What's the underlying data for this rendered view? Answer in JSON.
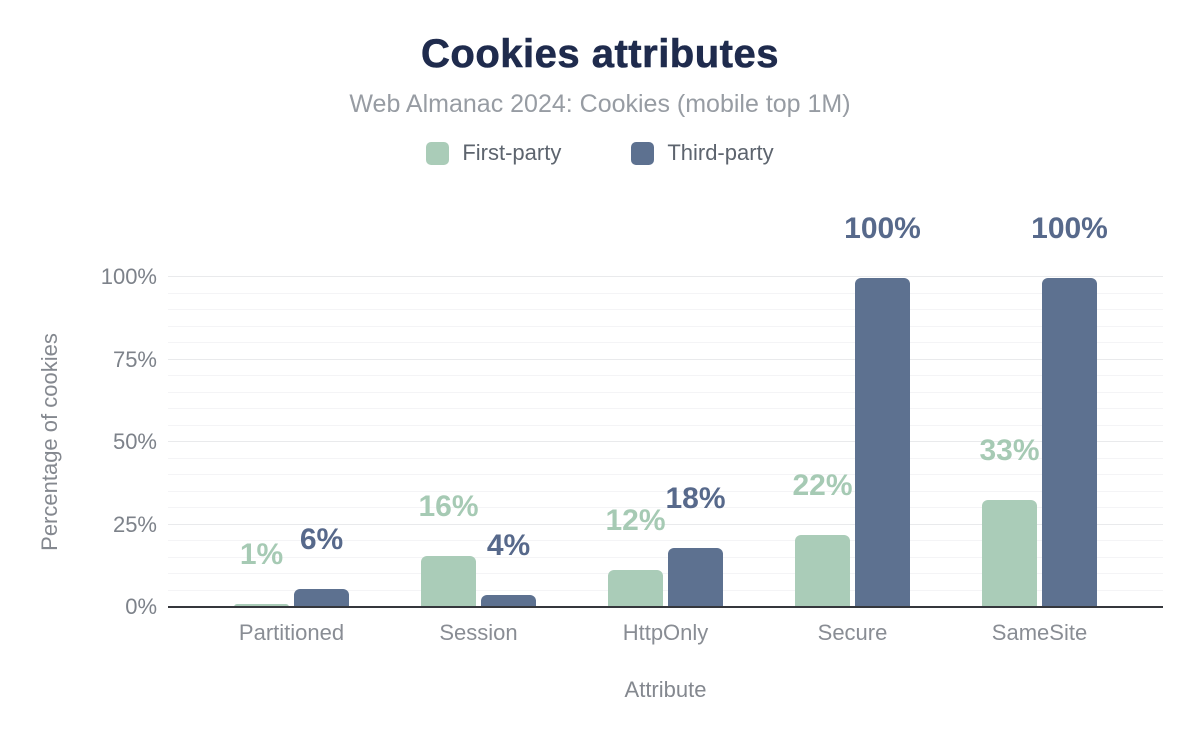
{
  "header": {
    "title": "Cookies attributes",
    "subtitle": "Web Almanac 2024: Cookies (mobile top 1M)"
  },
  "colors": {
    "title": "#1f2b4d",
    "subtitle_text": "#979ca3",
    "first_party": "#aaccb8",
    "first_party_label": "#a6cab4",
    "third_party": "#5d7190",
    "third_party_label": "#57698b",
    "axis_line": "#35373c",
    "grid_major": "#e9eaec",
    "grid_minor": "#f4f4f6",
    "tick_text": "#7d828a",
    "category_text": "#898d94",
    "axis_title_text": "#84888f"
  },
  "chart_data": {
    "type": "bar",
    "title": "Cookies attributes",
    "subtitle": "Web Almanac 2024: Cookies (mobile top 1M)",
    "categories": [
      "Partitioned",
      "Session",
      "HttpOnly",
      "Secure",
      "SameSite"
    ],
    "series": [
      {
        "name": "First-party",
        "color": "#aaccb8",
        "label_color": "#a6cab4",
        "values": [
          1,
          16,
          12,
          22,
          33
        ],
        "value_labels": [
          "1%",
          "16%",
          "12%",
          "22%",
          "33%"
        ],
        "render_heights_pct": [
          0.8,
          15.4,
          11.3,
          21.9,
          32.5
        ]
      },
      {
        "name": "Third-party",
        "color": "#5d7190",
        "label_color": "#57698b",
        "values": [
          6,
          4,
          18,
          100,
          100
        ],
        "value_labels": [
          "6%",
          "4%",
          "18%",
          "100%",
          "100%"
        ],
        "render_heights_pct": [
          5.5,
          3.6,
          17.9,
          99.7,
          99.7
        ]
      }
    ],
    "xlabel": "Attribute",
    "ylabel": "Percentage of cookies",
    "ylim": [
      0,
      100
    ],
    "yticks": [
      0,
      25,
      50,
      75,
      100
    ],
    "ytick_labels": [
      "0%",
      "25%",
      "50%",
      "75%",
      "100%"
    ],
    "minor_grid_step_pct": 5,
    "major_grid_step_pct": 25,
    "grid": true,
    "legend_position": "top"
  }
}
